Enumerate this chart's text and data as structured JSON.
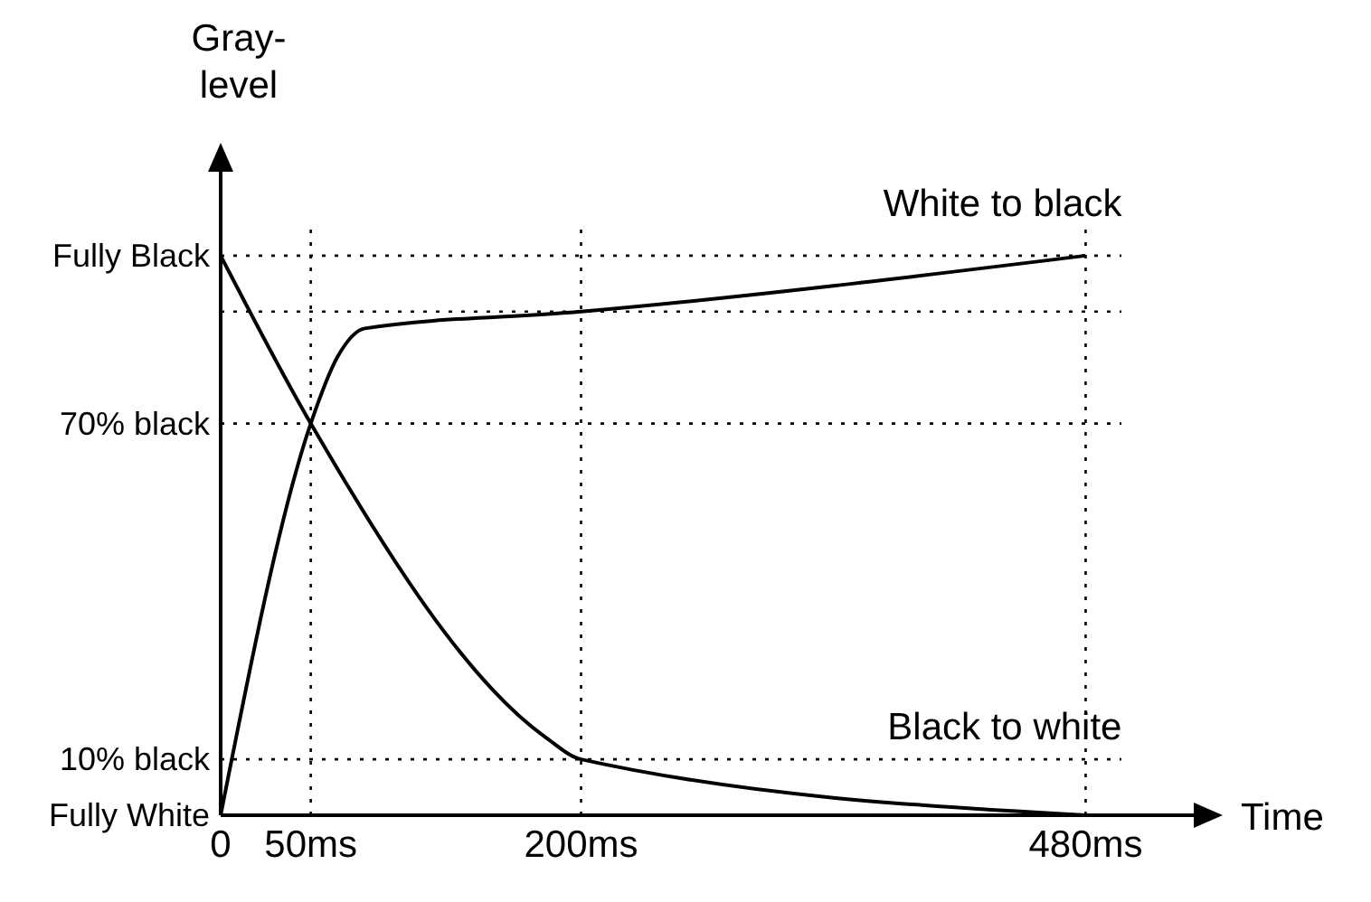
{
  "chart_data": {
    "type": "line",
    "xlabel": "Time",
    "ylabel": "Gray-level",
    "xlim": [
      0,
      540
    ],
    "ylim": [
      0,
      115
    ],
    "xticks": [
      0,
      {
        "value": 50,
        "label": "50ms"
      },
      {
        "value": 200,
        "label": "200ms"
      },
      {
        "value": 480,
        "label": "480ms"
      }
    ],
    "yticks": [
      {
        "value": 0,
        "label": "Fully White"
      },
      {
        "value": 10,
        "label": "10% black"
      },
      {
        "value": 70,
        "label": "70% black"
      },
      {
        "value": 100,
        "label": "Fully Black"
      }
    ],
    "series": [
      {
        "name": "White to black",
        "color": "#000000",
        "x": [
          0,
          50,
          65,
          80,
          200,
          480
        ],
        "values": [
          0,
          70,
          82,
          87,
          90,
          100
        ]
      },
      {
        "name": "Black to white",
        "color": "#000000",
        "x": [
          0,
          50,
          180,
          200,
          480
        ],
        "values": [
          100,
          70,
          14,
          10,
          0
        ]
      }
    ],
    "ref_lines": [
      {
        "axis": "y",
        "value": 100,
        "line_style": "dotted"
      },
      {
        "axis": "y",
        "value": 90,
        "line_style": "dotted"
      },
      {
        "axis": "y",
        "value": 70,
        "line_style": "dotted"
      },
      {
        "axis": "y",
        "value": 10,
        "line_style": "dotted"
      },
      {
        "axis": "x",
        "value": 50,
        "line_style": "dotted"
      },
      {
        "axis": "x",
        "value": 200,
        "line_style": "dotted"
      },
      {
        "axis": "x",
        "value": 480,
        "line_style": "dotted"
      }
    ],
    "marker": "none",
    "line_style": "solid",
    "grid": false,
    "legend": false
  }
}
